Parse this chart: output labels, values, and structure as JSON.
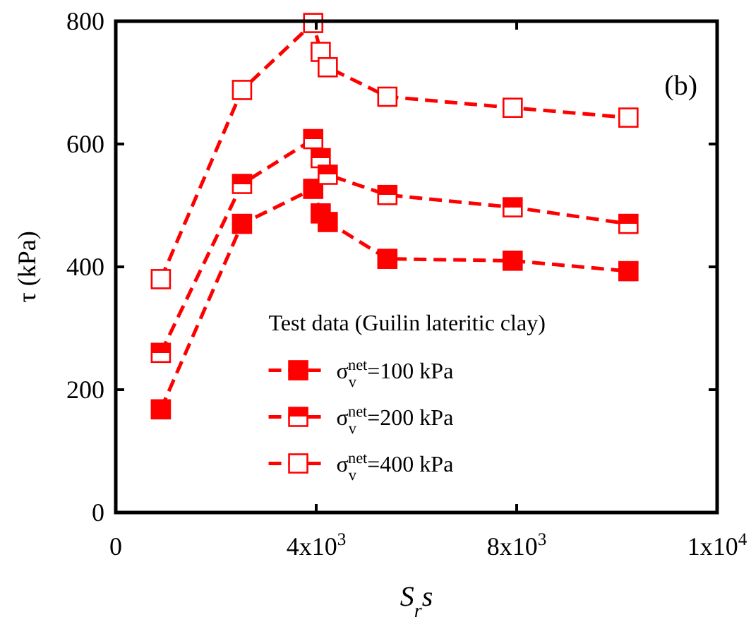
{
  "chart_data": {
    "type": "line",
    "xlabel": "S$_{r}$s",
    "ylabel": "τ (kPa)",
    "legend_title": "Test data (Guilin lateritic clay)",
    "annotations": [
      "(b)"
    ],
    "x": [
      900,
      2520,
      3940,
      4090,
      4230,
      5420,
      7920,
      10230
    ],
    "xlim": [
      0,
      12000
    ],
    "xticks": [
      0,
      {
        "value": 4000,
        "label": "4x10$^{3}$"
      },
      {
        "value": 8000,
        "label": "8x10$^{3}$"
      },
      {
        "value": 12000,
        "label": "1x10$^{4}$"
      }
    ],
    "ylim": [
      0,
      800
    ],
    "yticks": [
      0,
      200,
      400,
      600,
      800
    ],
    "marker": "square",
    "line_style": "dashed",
    "legend": "bottom",
    "grid": false,
    "series": [
      {
        "name": "σ$_{v}$$^{net}$=100 kPa",
        "color": "#ff0000",
        "values": [
          168,
          470,
          527,
          487,
          473,
          413,
          410,
          393
        ]
      },
      {
        "name": "σ$_{v}$$^{net}$=200 kPa",
        "color": "#ff0000",
        "values": [
          260,
          535,
          608,
          577,
          550,
          517,
          497,
          470
        ]
      },
      {
        "name": "σ$_{v}$$^{net}$=400 kPa",
        "color": "#ff0000",
        "values": [
          380,
          688,
          797,
          750,
          725,
          677,
          659,
          643
        ]
      }
    ]
  }
}
